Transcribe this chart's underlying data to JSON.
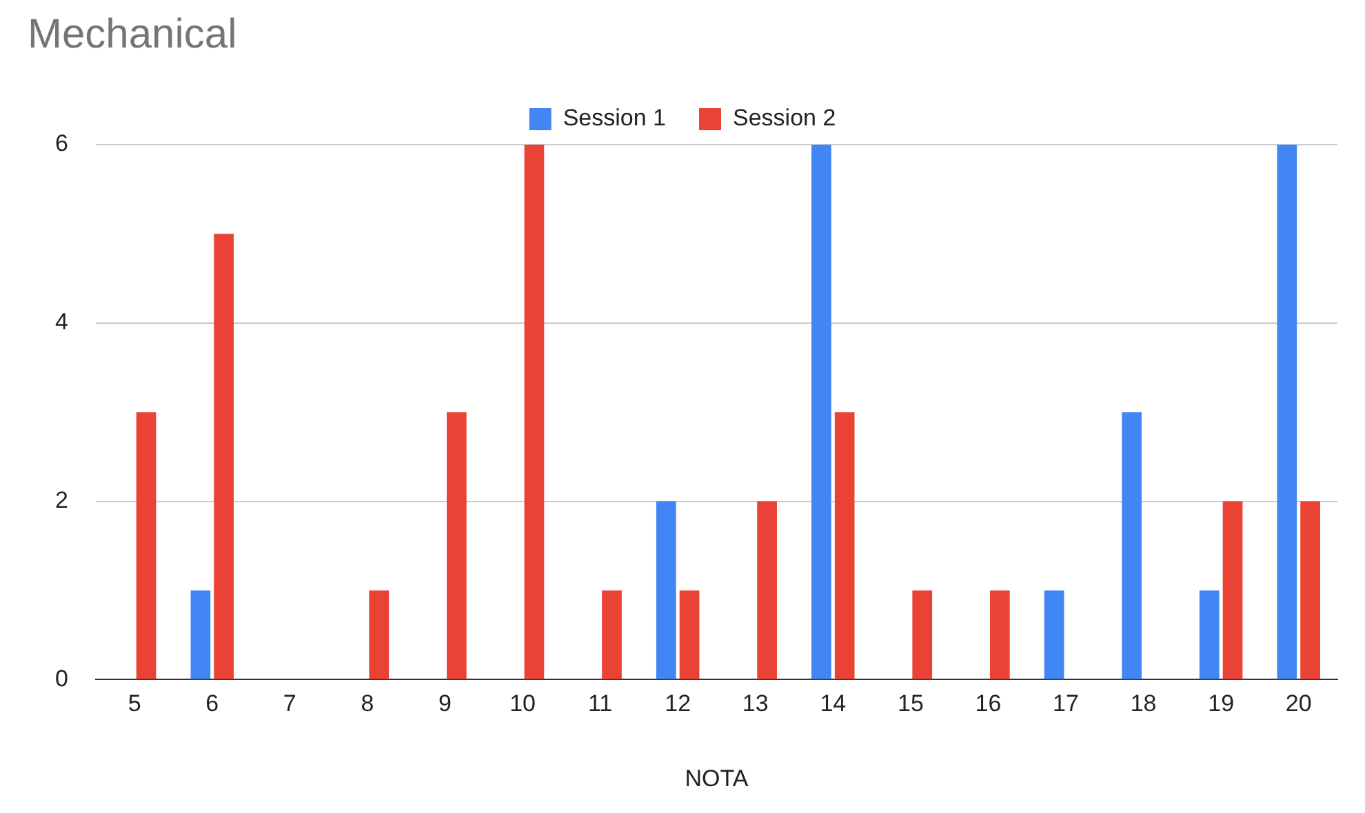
{
  "chart_data": {
    "type": "bar",
    "title": "Mechanical",
    "xlabel": "NOTA",
    "categories": [
      "5",
      "6",
      "7",
      "8",
      "9",
      "10",
      "11",
      "12",
      "13",
      "14",
      "15",
      "16",
      "17",
      "18",
      "19",
      "20"
    ],
    "series": [
      {
        "name": "Session 1",
        "color": "#4285f4",
        "values": [
          0,
          1,
          0,
          0,
          0,
          0,
          0,
          2,
          0,
          6,
          0,
          0,
          1,
          3,
          1,
          6
        ]
      },
      {
        "name": "Session 2",
        "color": "#ea4335",
        "values": [
          3,
          5,
          0,
          1,
          3,
          6,
          1,
          1,
          2,
          3,
          1,
          1,
          0,
          0,
          2,
          2
        ]
      }
    ],
    "ylim": [
      0,
      6
    ],
    "yticks": [
      0,
      2,
      4,
      6
    ],
    "grid": "y",
    "legend": "top"
  }
}
